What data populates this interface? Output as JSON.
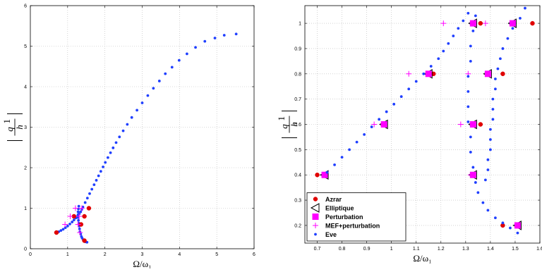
{
  "chart_data": [
    {
      "type": "scatter",
      "xlabel": "Ω/ω₁",
      "ylabel_numer": "q",
      "ylabel_numer_sup": "1",
      "ylabel_denom": "h",
      "xlim": [
        0,
        6
      ],
      "ylim": [
        0,
        6
      ],
      "xticks": [
        "0",
        "1",
        "2",
        "3",
        "4",
        "5",
        "6"
      ],
      "yticks": [
        "0",
        "1",
        "2",
        "3",
        "4",
        "5",
        "6"
      ],
      "grid": true,
      "series": [
        {
          "key": "eve",
          "marker": "dot",
          "color": "#1f3fff",
          "points": [
            [
              0.7,
              0.4
            ],
            [
              0.76,
              0.42
            ],
            [
              0.82,
              0.45
            ],
            [
              0.88,
              0.48
            ],
            [
              0.94,
              0.52
            ],
            [
              1.0,
              0.56
            ],
            [
              1.06,
              0.61
            ],
            [
              1.12,
              0.66
            ],
            [
              1.17,
              0.71
            ],
            [
              1.22,
              0.76
            ],
            [
              1.27,
              0.81
            ],
            [
              1.31,
              0.86
            ],
            [
              1.35,
              0.91
            ],
            [
              1.38,
              0.97
            ],
            [
              1.41,
              1.03
            ],
            [
              1.47,
              1.14
            ],
            [
              1.53,
              1.25
            ],
            [
              1.59,
              1.36
            ],
            [
              1.65,
              1.47
            ],
            [
              1.71,
              1.58
            ],
            [
              1.77,
              1.69
            ],
            [
              1.83,
              1.8
            ],
            [
              1.89,
              1.91
            ],
            [
              1.95,
              2.02
            ],
            [
              2.01,
              2.13
            ],
            [
              2.08,
              2.25
            ],
            [
              2.15,
              2.37
            ],
            [
              2.22,
              2.49
            ],
            [
              2.3,
              2.62
            ],
            [
              2.39,
              2.76
            ],
            [
              2.49,
              2.91
            ],
            [
              2.6,
              3.07
            ],
            [
              2.72,
              3.24
            ],
            [
              2.86,
              3.42
            ],
            [
              3.0,
              3.6
            ],
            [
              3.15,
              3.78
            ],
            [
              3.3,
              3.96
            ],
            [
              3.46,
              4.14
            ],
            [
              3.62,
              4.32
            ],
            [
              3.8,
              4.48
            ],
            [
              3.99,
              4.65
            ],
            [
              4.2,
              4.81
            ],
            [
              4.43,
              4.97
            ],
            [
              4.68,
              5.12
            ],
            [
              4.95,
              5.2
            ],
            [
              5.2,
              5.27
            ],
            [
              5.52,
              5.3
            ],
            [
              1.3,
              1.05
            ],
            [
              1.29,
              0.98
            ],
            [
              1.28,
              0.91
            ],
            [
              1.28,
              0.84
            ],
            [
              1.28,
              0.77
            ],
            [
              1.29,
              0.7
            ],
            [
              1.3,
              0.63
            ],
            [
              1.31,
              0.56
            ],
            [
              1.32,
              0.49
            ],
            [
              1.33,
              0.42
            ],
            [
              1.35,
              0.36
            ],
            [
              1.37,
              0.3
            ],
            [
              1.39,
              0.26
            ],
            [
              1.42,
              0.22
            ],
            [
              1.45,
              0.19
            ],
            [
              1.48,
              0.17
            ],
            [
              1.52,
              0.16
            ]
          ]
        },
        {
          "key": "azrar",
          "marker": "circle",
          "color": "#e00000",
          "points": [
            [
              0.7,
              0.4
            ],
            [
              1.17,
              0.8
            ],
            [
              1.36,
              0.6
            ],
            [
              1.45,
              0.8
            ],
            [
              1.57,
              1.0
            ],
            [
              1.45,
              0.2
            ]
          ]
        },
        {
          "key": "mef",
          "marker": "plus",
          "color": "#ff00ff",
          "points": [
            [
              0.93,
              0.6
            ],
            [
              1.07,
              0.8
            ],
            [
              1.21,
              1.0
            ],
            [
              1.28,
              0.6
            ],
            [
              1.31,
              0.8
            ],
            [
              1.38,
              1.0
            ],
            [
              1.33,
              0.4
            ]
          ]
        }
      ]
    },
    {
      "type": "scatter",
      "xlabel": "Ω/ω₁",
      "ylabel_numer": "q",
      "ylabel_numer_sup": "1",
      "ylabel_denom": "h",
      "xlim": [
        0.65,
        1.6
      ],
      "ylim": [
        0.13,
        1.07
      ],
      "xticks": [
        "0.7",
        "0.8",
        "0.9",
        "1",
        "1.1",
        "1.2",
        "1.3",
        "1.4",
        "1.5",
        "1.6"
      ],
      "xtick_values": [
        0.7,
        0.8,
        0.9,
        1.0,
        1.1,
        1.2,
        1.3,
        1.4,
        1.5,
        1.6
      ],
      "yticks": [
        "0.2",
        "0.3",
        "0.4",
        "0.5",
        "0.6",
        "0.7",
        "0.8",
        "0.9",
        "1"
      ],
      "ytick_values": [
        0.2,
        0.3,
        0.4,
        0.5,
        0.6,
        0.7,
        0.8,
        0.9,
        1.0
      ],
      "grid": true,
      "legend_position": "bottom-left",
      "series": [
        {
          "key": "azrar",
          "name": "Azrar",
          "marker": "circle",
          "color": "#e00000",
          "points": [
            [
              0.7,
              0.4
            ],
            [
              1.17,
              0.8
            ],
            [
              1.36,
              0.6
            ],
            [
              1.45,
              0.8
            ],
            [
              1.57,
              1.0
            ],
            [
              1.45,
              0.2
            ],
            [
              1.36,
              1.0
            ]
          ]
        },
        {
          "key": "elliptique",
          "name": "Elliptique",
          "marker": "triangle",
          "color": "#000000",
          "points": [
            [
              0.73,
              0.4
            ],
            [
              0.97,
              0.6
            ],
            [
              1.15,
              0.8
            ],
            [
              1.33,
              0.6
            ],
            [
              1.39,
              0.8
            ],
            [
              1.49,
              1.0
            ],
            [
              1.33,
              1.0
            ],
            [
              1.33,
              0.4
            ],
            [
              1.51,
              0.2
            ]
          ]
        },
        {
          "key": "perturbation",
          "name": "Perturbation",
          "marker": "square",
          "color": "#ff00ff",
          "points": [
            [
              0.73,
              0.4
            ],
            [
              0.97,
              0.6
            ],
            [
              1.15,
              0.8
            ],
            [
              1.33,
              0.6
            ],
            [
              1.39,
              0.8
            ],
            [
              1.49,
              1.0
            ],
            [
              1.33,
              1.0
            ],
            [
              1.33,
              0.4
            ],
            [
              1.51,
              0.2
            ]
          ]
        },
        {
          "key": "mef",
          "name": "MEF+perturbation",
          "marker": "plus",
          "color": "#ff00ff",
          "points": [
            [
              0.93,
              0.6
            ],
            [
              1.07,
              0.8
            ],
            [
              1.21,
              1.0
            ],
            [
              1.28,
              0.6
            ],
            [
              1.31,
              0.8
            ],
            [
              1.38,
              1.0
            ],
            [
              1.32,
              0.4
            ]
          ]
        },
        {
          "key": "eve",
          "name": "Eve",
          "marker": "dot",
          "color": "#1f3fff",
          "points": [
            [
              0.74,
              0.41
            ],
            [
              0.77,
              0.44
            ],
            [
              0.8,
              0.47
            ],
            [
              0.83,
              0.5
            ],
            [
              0.86,
              0.53
            ],
            [
              0.89,
              0.56
            ],
            [
              0.92,
              0.59
            ],
            [
              0.95,
              0.62
            ],
            [
              0.98,
              0.65
            ],
            [
              1.01,
              0.68
            ],
            [
              1.04,
              0.71
            ],
            [
              1.07,
              0.74
            ],
            [
              1.1,
              0.77
            ],
            [
              1.13,
              0.8
            ],
            [
              1.16,
              0.83
            ],
            [
              1.19,
              0.86
            ],
            [
              1.21,
              0.89
            ],
            [
              1.23,
              0.92
            ],
            [
              1.25,
              0.95
            ],
            [
              1.27,
              0.98
            ],
            [
              1.29,
              1.01
            ],
            [
              1.31,
              1.04
            ],
            [
              1.34,
              1.03
            ],
            [
              1.33,
              0.97
            ],
            [
              1.32,
              0.91
            ],
            [
              1.32,
              0.85
            ],
            [
              1.31,
              0.79
            ],
            [
              1.31,
              0.73
            ],
            [
              1.31,
              0.67
            ],
            [
              1.31,
              0.61
            ],
            [
              1.32,
              0.55
            ],
            [
              1.32,
              0.49
            ],
            [
              1.33,
              0.43
            ],
            [
              1.34,
              0.37
            ],
            [
              1.35,
              0.33
            ],
            [
              1.37,
              0.29
            ],
            [
              1.39,
              0.26
            ],
            [
              1.42,
              0.23
            ],
            [
              1.45,
              0.21
            ],
            [
              1.48,
              0.19
            ],
            [
              1.51,
              0.17
            ],
            [
              1.54,
              1.06
            ],
            [
              1.52,
              1.02
            ],
            [
              1.49,
              0.98
            ],
            [
              1.47,
              0.94
            ],
            [
              1.45,
              0.9
            ],
            [
              1.44,
              0.86
            ],
            [
              1.43,
              0.82
            ],
            [
              1.42,
              0.78
            ],
            [
              1.42,
              0.74
            ],
            [
              1.41,
              0.7
            ],
            [
              1.41,
              0.66
            ],
            [
              1.41,
              0.62
            ],
            [
              1.4,
              0.58
            ],
            [
              1.4,
              0.54
            ],
            [
              1.4,
              0.5
            ],
            [
              1.39,
              0.46
            ],
            [
              1.39,
              0.42
            ],
            [
              1.38,
              0.38
            ]
          ]
        }
      ]
    }
  ]
}
